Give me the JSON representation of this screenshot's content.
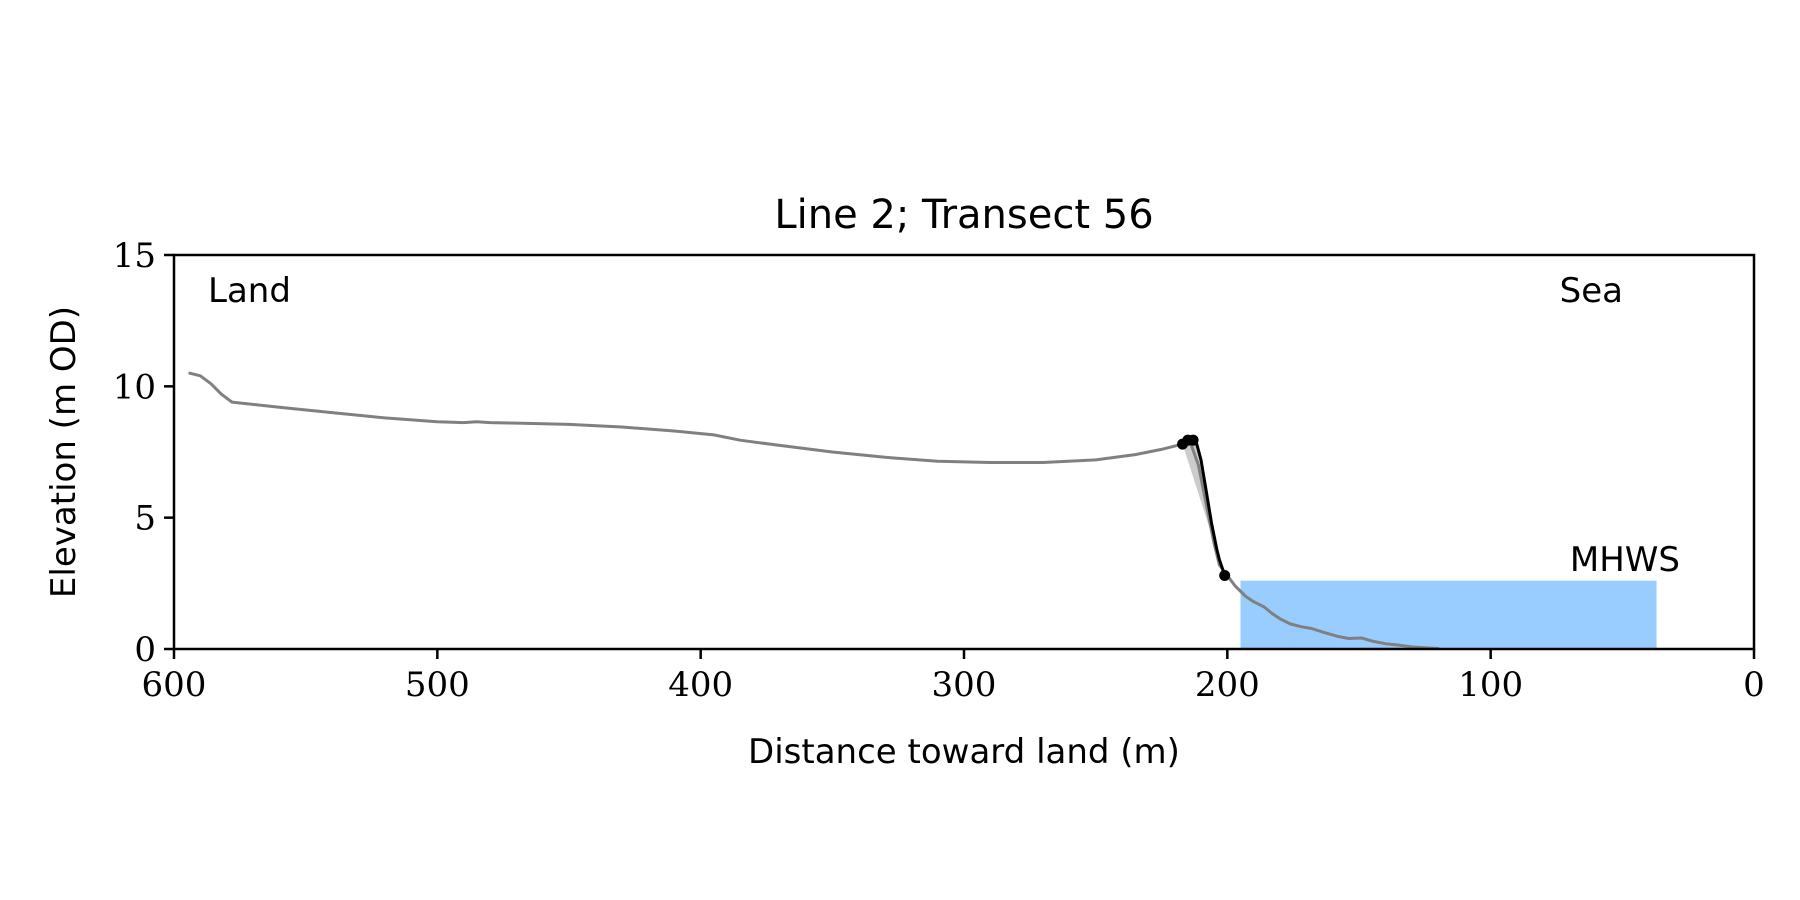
{
  "colors": {
    "profile": "#808080",
    "cliff": "#000000",
    "cliff_fill": "#cccccc",
    "mhws_fill": "#99ccff",
    "mhws_text": "#6699cc",
    "axes": "#000000"
  },
  "chart_data": {
    "type": "line",
    "title": "Line 2; Transect 56",
    "xlabel": "Distance toward land (m)",
    "ylabel": "Elevation (m OD)",
    "xlim": [
      600,
      0
    ],
    "ylim": [
      0,
      15
    ],
    "x_reversed": true,
    "xticks": [
      600,
      500,
      400,
      300,
      200,
      100,
      0
    ],
    "yticks": [
      0,
      5,
      10,
      15
    ],
    "grid": false,
    "annotations": {
      "land": "Land",
      "sea": "Sea",
      "mhws": "MHWS"
    },
    "series": [
      {
        "role": "profile",
        "x": [
          594,
          590,
          586,
          582,
          578,
          560,
          540,
          520,
          500,
          490,
          485,
          480,
          470,
          450,
          430,
          410,
          395,
          385,
          370,
          350,
          330,
          310,
          290,
          270,
          250,
          235,
          225,
          217,
          214,
          211,
          207,
          205,
          203,
          200,
          197,
          193,
          190,
          186,
          183,
          180,
          176,
          172,
          168,
          163,
          158,
          154,
          149,
          145,
          140,
          135,
          130,
          125,
          120
        ],
        "y": [
          10.5,
          10.4,
          10.1,
          9.7,
          9.4,
          9.2,
          9.0,
          8.8,
          8.65,
          8.62,
          8.65,
          8.62,
          8.6,
          8.55,
          8.45,
          8.3,
          8.15,
          7.95,
          7.75,
          7.5,
          7.3,
          7.15,
          7.1,
          7.1,
          7.2,
          7.4,
          7.6,
          7.8,
          7.85,
          7.0,
          5.0,
          4.0,
          3.2,
          2.8,
          2.4,
          2.0,
          1.8,
          1.6,
          1.35,
          1.15,
          0.95,
          0.85,
          0.78,
          0.62,
          0.48,
          0.4,
          0.42,
          0.3,
          0.2,
          0.15,
          0.08,
          0.05,
          0.02
        ]
      },
      {
        "role": "cliff",
        "x": [
          217,
          216,
          214,
          213,
          212,
          210,
          208,
          206,
          204,
          203,
          202,
          201
        ],
        "y": [
          7.8,
          7.9,
          7.95,
          7.9,
          7.95,
          7.2,
          6.0,
          4.8,
          3.8,
          3.4,
          3.1,
          2.8
        ]
      }
    ],
    "cliff_points": [
      {
        "x": 217,
        "y": 7.8
      },
      {
        "x": 215,
        "y": 7.95
      },
      {
        "x": 213,
        "y": 7.95
      },
      {
        "x": 201,
        "y": 2.8
      }
    ],
    "mhws": {
      "level": 2.6,
      "x_from": 195,
      "x_to": 37
    }
  }
}
